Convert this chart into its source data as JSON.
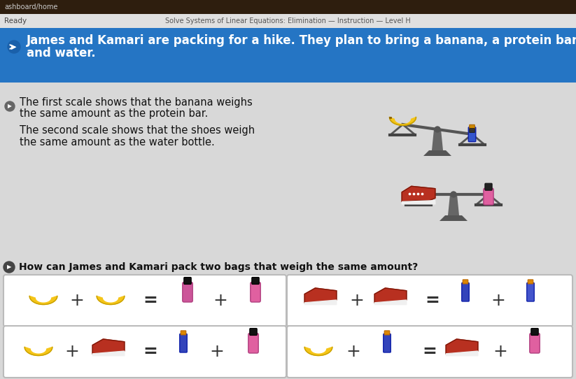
{
  "bg_color": "#c8c8c8",
  "top_bar_color": "#3a2a1a",
  "breadcrumb_text": "ashboard/home",
  "subtitle_text": "Solve Systems of Linear Equations: Elimination — Instruction — Level H",
  "ready_text": "Ready",
  "blue_bar_color": "#2575c4",
  "blue_bar_line1": "James and Kamari are packing for a hike. They plan to bring a banana, a protein bar, extra shoes,",
  "blue_bar_line2": "and water.",
  "para1_line1": "The first scale shows that the banana weighs",
  "para1_line2": "the same amount as the protein bar.",
  "para2_line1": "The second scale shows that the shoes weigh",
  "para2_line2": "the same amount as the water bottle.",
  "question_text": "How can James and Kamari pack two bags that weigh the same amount?"
}
